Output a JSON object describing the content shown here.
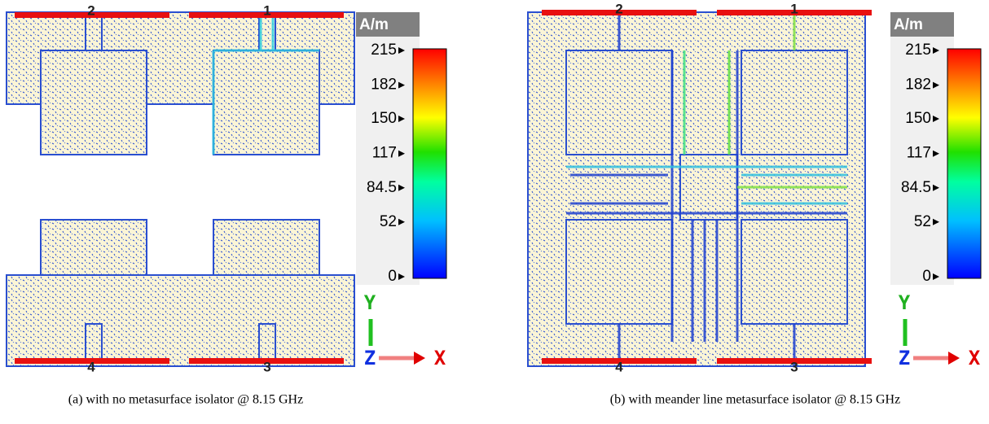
{
  "panels": [
    {
      "ports": [
        "2",
        "1",
        "4",
        "3"
      ],
      "colorbar": {
        "unit": "A/m",
        "ticks": [
          215,
          182,
          150,
          117,
          84.5,
          52,
          0
        ]
      },
      "axes": {
        "y": "Y",
        "z": "Z",
        "x": "X"
      },
      "caption": "(a) with no metasurface isolator @ 8.15 GHz"
    },
    {
      "ports": [
        "2",
        "1",
        "4",
        "3"
      ],
      "colorbar": {
        "unit": "A/m",
        "ticks": [
          215,
          182,
          150,
          117,
          84.5,
          52,
          0
        ]
      },
      "axes": {
        "y": "Y",
        "z": "Z",
        "x": "X"
      },
      "caption": "(b) with meander line metasurface isolator @ 8.15 GHz"
    }
  ]
}
